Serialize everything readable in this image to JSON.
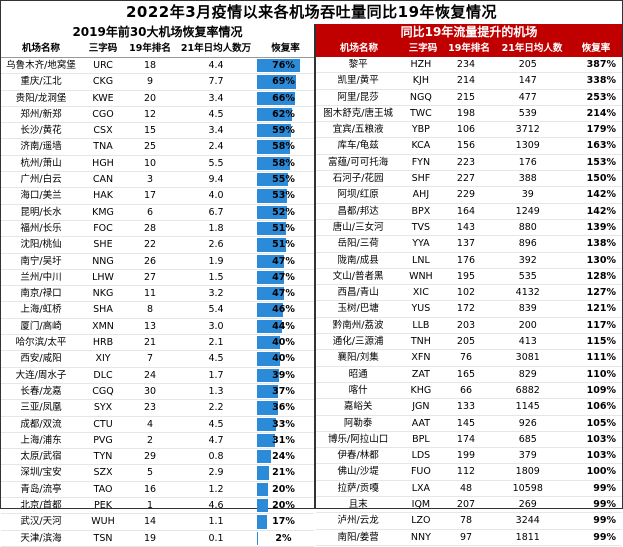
{
  "title": "2022年3月疫情以来各机场吞吐量同比19年恢复情况",
  "left": {
    "subtitle": "2019年前30大机场恢复率情况",
    "headers": [
      "机场名称",
      "三字码",
      "19年排名",
      "21年日均人数万",
      "恢复率"
    ],
    "bar_color": "#2b8bd8",
    "rows": [
      {
        "name": "乌鲁木齐/地窝堡",
        "code": "URC",
        "rank": "18",
        "daily": "4.4",
        "rate": "76%",
        "rate_value": 0.76
      },
      {
        "name": "重庆/江北",
        "code": "CKG",
        "rank": "9",
        "daily": "7.7",
        "rate": "69%",
        "rate_value": 0.69
      },
      {
        "name": "贵阳/龙洞堡",
        "code": "KWE",
        "rank": "20",
        "daily": "3.4",
        "rate": "66%",
        "rate_value": 0.66
      },
      {
        "name": "郑州/新郑",
        "code": "CGO",
        "rank": "12",
        "daily": "4.5",
        "rate": "62%",
        "rate_value": 0.62
      },
      {
        "name": "长沙/黄花",
        "code": "CSX",
        "rank": "15",
        "daily": "3.4",
        "rate": "59%",
        "rate_value": 0.59
      },
      {
        "name": "济南/遥墙",
        "code": "TNA",
        "rank": "25",
        "daily": "2.4",
        "rate": "58%",
        "rate_value": 0.58
      },
      {
        "name": "杭州/萧山",
        "code": "HGH",
        "rank": "10",
        "daily": "5.5",
        "rate": "58%",
        "rate_value": 0.58
      },
      {
        "name": "广州/白云",
        "code": "CAN",
        "rank": "3",
        "daily": "9.4",
        "rate": "55%",
        "rate_value": 0.55
      },
      {
        "name": "海口/美兰",
        "code": "HAK",
        "rank": "17",
        "daily": "4.0",
        "rate": "53%",
        "rate_value": 0.53
      },
      {
        "name": "昆明/长水",
        "code": "KMG",
        "rank": "6",
        "daily": "6.7",
        "rate": "52%",
        "rate_value": 0.52
      },
      {
        "name": "福州/长乐",
        "code": "FOC",
        "rank": "28",
        "daily": "1.8",
        "rate": "51%",
        "rate_value": 0.51
      },
      {
        "name": "沈阳/桃仙",
        "code": "SHE",
        "rank": "22",
        "daily": "2.6",
        "rate": "51%",
        "rate_value": 0.51
      },
      {
        "name": "南宁/吴圩",
        "code": "NNG",
        "rank": "26",
        "daily": "1.9",
        "rate": "47%",
        "rate_value": 0.47
      },
      {
        "name": "兰州/中川",
        "code": "LHW",
        "rank": "27",
        "daily": "1.5",
        "rate": "47%",
        "rate_value": 0.47
      },
      {
        "name": "南京/禄口",
        "code": "NKG",
        "rank": "11",
        "daily": "3.2",
        "rate": "47%",
        "rate_value": 0.47
      },
      {
        "name": "上海/虹桥",
        "code": "SHA",
        "rank": "8",
        "daily": "5.4",
        "rate": "46%",
        "rate_value": 0.46
      },
      {
        "name": "厦门/高崎",
        "code": "XMN",
        "rank": "13",
        "daily": "3.0",
        "rate": "44%",
        "rate_value": 0.44
      },
      {
        "name": "哈尔滨/太平",
        "code": "HRB",
        "rank": "21",
        "daily": "2.1",
        "rate": "40%",
        "rate_value": 0.4
      },
      {
        "name": "西安/咸阳",
        "code": "XIY",
        "rank": "7",
        "daily": "4.5",
        "rate": "40%",
        "rate_value": 0.4
      },
      {
        "name": "大连/周水子",
        "code": "DLC",
        "rank": "24",
        "daily": "1.7",
        "rate": "39%",
        "rate_value": 0.39
      },
      {
        "name": "长春/龙嘉",
        "code": "CGQ",
        "rank": "30",
        "daily": "1.3",
        "rate": "37%",
        "rate_value": 0.37
      },
      {
        "name": "三亚/凤凰",
        "code": "SYX",
        "rank": "23",
        "daily": "2.2",
        "rate": "36%",
        "rate_value": 0.36
      },
      {
        "name": "成都/双流",
        "code": "CTU",
        "rank": "4",
        "daily": "4.5",
        "rate": "33%",
        "rate_value": 0.33
      },
      {
        "name": "上海/浦东",
        "code": "PVG",
        "rank": "2",
        "daily": "4.7",
        "rate": "31%",
        "rate_value": 0.31
      },
      {
        "name": "太原/武宿",
        "code": "TYN",
        "rank": "29",
        "daily": "0.8",
        "rate": "24%",
        "rate_value": 0.24
      },
      {
        "name": "深圳/宝安",
        "code": "SZX",
        "rank": "5",
        "daily": "2.9",
        "rate": "21%",
        "rate_value": 0.21
      },
      {
        "name": "青岛/流亭",
        "code": "TAO",
        "rank": "16",
        "daily": "1.2",
        "rate": "20%",
        "rate_value": 0.2
      },
      {
        "name": "北京/首都",
        "code": "PEK",
        "rank": "1",
        "daily": "4.6",
        "rate": "20%",
        "rate_value": 0.2
      },
      {
        "name": "武汉/天河",
        "code": "WUH",
        "rank": "14",
        "daily": "1.1",
        "rate": "17%",
        "rate_value": 0.17
      },
      {
        "name": "天津/滨海",
        "code": "TSN",
        "rank": "19",
        "daily": "0.1",
        "rate": "2%",
        "rate_value": 0.02
      }
    ]
  },
  "right": {
    "subtitle": "同比19年流量提升的机场",
    "headers": [
      "机场名称",
      "三字码",
      "19年排名",
      "21年日均人数",
      "恢复率"
    ],
    "header_color": "#c00000",
    "rows": [
      {
        "name": "黎平",
        "code": "HZH",
        "rank": "234",
        "daily": "205",
        "rate": "387%"
      },
      {
        "name": "凯里/黄平",
        "code": "KJH",
        "rank": "214",
        "daily": "147",
        "rate": "338%"
      },
      {
        "name": "阿里/昆莎",
        "code": "NGQ",
        "rank": "215",
        "daily": "477",
        "rate": "253%"
      },
      {
        "name": "图木舒克/唐王城",
        "code": "TWC",
        "rank": "198",
        "daily": "539",
        "rate": "214%"
      },
      {
        "name": "宜宾/五粮液",
        "code": "YBP",
        "rank": "106",
        "daily": "3712",
        "rate": "179%"
      },
      {
        "name": "库车/龟兹",
        "code": "KCA",
        "rank": "156",
        "daily": "1309",
        "rate": "163%"
      },
      {
        "name": "富蕴/可可托海",
        "code": "FYN",
        "rank": "223",
        "daily": "176",
        "rate": "153%"
      },
      {
        "name": "石河子/花园",
        "code": "SHF",
        "rank": "227",
        "daily": "388",
        "rate": "150%"
      },
      {
        "name": "阿坝/红原",
        "code": "AHJ",
        "rank": "229",
        "daily": "39",
        "rate": "142%"
      },
      {
        "name": "昌都/邦达",
        "code": "BPX",
        "rank": "164",
        "daily": "1249",
        "rate": "142%"
      },
      {
        "name": "唐山/三女河",
        "code": "TVS",
        "rank": "143",
        "daily": "880",
        "rate": "139%"
      },
      {
        "name": "岳阳/三荷",
        "code": "YYA",
        "rank": "137",
        "daily": "896",
        "rate": "138%"
      },
      {
        "name": "陇南/成县",
        "code": "LNL",
        "rank": "176",
        "daily": "392",
        "rate": "130%"
      },
      {
        "name": "文山/普者黑",
        "code": "WNH",
        "rank": "195",
        "daily": "535",
        "rate": "128%"
      },
      {
        "name": "西昌/青山",
        "code": "XIC",
        "rank": "102",
        "daily": "4132",
        "rate": "127%"
      },
      {
        "name": "玉树/巴塘",
        "code": "YUS",
        "rank": "172",
        "daily": "839",
        "rate": "121%"
      },
      {
        "name": "黔南州/荔波",
        "code": "LLB",
        "rank": "203",
        "daily": "200",
        "rate": "117%"
      },
      {
        "name": "通化/三源浦",
        "code": "TNH",
        "rank": "205",
        "daily": "413",
        "rate": "115%"
      },
      {
        "name": "襄阳/刘集",
        "code": "XFN",
        "rank": "76",
        "daily": "3081",
        "rate": "111%"
      },
      {
        "name": "昭通",
        "code": "ZAT",
        "rank": "165",
        "daily": "829",
        "rate": "110%"
      },
      {
        "name": "喀什",
        "code": "KHG",
        "rank": "66",
        "daily": "6882",
        "rate": "109%"
      },
      {
        "name": "嘉峪关",
        "code": "JGN",
        "rank": "133",
        "daily": "1145",
        "rate": "106%"
      },
      {
        "name": "阿勒泰",
        "code": "AAT",
        "rank": "145",
        "daily": "926",
        "rate": "105%"
      },
      {
        "name": "博乐/阿拉山口",
        "code": "BPL",
        "rank": "174",
        "daily": "685",
        "rate": "103%"
      },
      {
        "name": "伊春/林都",
        "code": "LDS",
        "rank": "199",
        "daily": "379",
        "rate": "103%"
      },
      {
        "name": "佛山/沙堤",
        "code": "FUO",
        "rank": "112",
        "daily": "1809",
        "rate": "100%"
      },
      {
        "name": "拉萨/贡嘎",
        "code": "LXA",
        "rank": "48",
        "daily": "10598",
        "rate": "99%"
      },
      {
        "name": "且末",
        "code": "IQM",
        "rank": "207",
        "daily": "269",
        "rate": "99%"
      },
      {
        "name": "泸州/云龙",
        "code": "LZO",
        "rank": "78",
        "daily": "3244",
        "rate": "99%"
      },
      {
        "name": "南阳/姜营",
        "code": "NNY",
        "rank": "97",
        "daily": "1811",
        "rate": "99%"
      }
    ]
  }
}
